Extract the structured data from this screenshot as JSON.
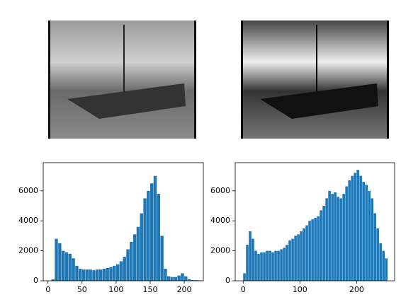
{
  "chart_data": [
    {
      "type": "histogram",
      "color": "#1f77b4",
      "bins": [
        0,
        5,
        10,
        15,
        20,
        25,
        30,
        35,
        40,
        45,
        50,
        55,
        60,
        65,
        70,
        75,
        80,
        85,
        90,
        95,
        100,
        105,
        110,
        115,
        120,
        125,
        130,
        135,
        140,
        145,
        150,
        155,
        160,
        165,
        170,
        175,
        180,
        185,
        190,
        195,
        200,
        205,
        210,
        215,
        220,
        225
      ],
      "counts": [
        0,
        100,
        2800,
        2500,
        2000,
        1900,
        1800,
        1500,
        1000,
        800,
        750,
        750,
        750,
        700,
        750,
        750,
        800,
        850,
        900,
        1000,
        1100,
        1300,
        1600,
        2100,
        2600,
        3100,
        3600,
        4500,
        5500,
        6000,
        6500,
        7000,
        5800,
        3000,
        800,
        300,
        250,
        250,
        350,
        500,
        300,
        100,
        50,
        50,
        30
      ],
      "xlim": [
        -7,
        228
      ],
      "ylim": [
        0,
        7880
      ],
      "xticks": [
        0,
        50,
        100,
        150,
        200
      ],
      "yticks": [
        0,
        2000,
        4000,
        6000
      ]
    },
    {
      "type": "histogram",
      "color": "#1f77b4",
      "bins": [
        0,
        5,
        10,
        15,
        20,
        25,
        30,
        35,
        40,
        45,
        50,
        55,
        60,
        65,
        70,
        75,
        80,
        85,
        90,
        95,
        100,
        105,
        110,
        115,
        120,
        125,
        130,
        135,
        140,
        145,
        150,
        155,
        160,
        165,
        170,
        175,
        180,
        185,
        190,
        195,
        200,
        205,
        210,
        215,
        220,
        225,
        230,
        235,
        240,
        245,
        250,
        255
      ],
      "counts": [
        500,
        2400,
        3300,
        2800,
        2000,
        1800,
        1900,
        1900,
        2000,
        2000,
        1900,
        2000,
        2000,
        2100,
        2200,
        2400,
        2700,
        2800,
        3000,
        3100,
        3300,
        3500,
        3700,
        4000,
        4100,
        4200,
        4300,
        4700,
        5000,
        5500,
        6000,
        5800,
        5900,
        5600,
        5500,
        5800,
        6300,
        6700,
        7000,
        7200,
        7400,
        7000,
        6600,
        6400,
        6000,
        5500,
        4500,
        3500,
        2500,
        2000,
        1500
      ],
      "xlim": [
        -14,
        267
      ],
      "ylim": [
        0,
        7880
      ],
      "xticks": [
        0,
        100,
        200
      ],
      "yticks": [
        0,
        2000,
        4000,
        6000
      ]
    }
  ]
}
